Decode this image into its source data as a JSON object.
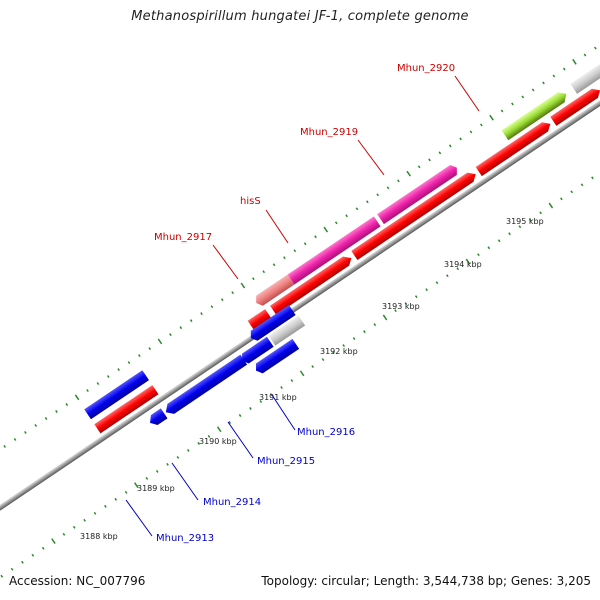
{
  "title": "Methanospirillum hungatei JF-1, complete genome",
  "footer": {
    "accession": "Accession: NC_007796",
    "summary": "Topology: circular; Length: 3,544,738 bp; Genes: 3,205"
  },
  "colors": {
    "forward_cds": "#ff0000",
    "reverse_cds": "#0000ee",
    "gene_pink": "#ee22aa",
    "gene_salmon": "#f08080",
    "gene_green": "#99dd33",
    "gene_gray": "#c8c8c8",
    "backbone": "#9a9a9a",
    "tick": "#2a8a2a",
    "label_forward": "#cc0000",
    "label_reverse": "#0000cc"
  },
  "scale_labels": [
    "3188 kbp",
    "3189 kbp",
    "3190 kbp",
    "3191 kbp",
    "3192 kbp",
    "3193 kbp",
    "3194 kbp",
    "3195 kbp"
  ],
  "gene_labels_forward": [
    "Mhun_2917",
    "hisS",
    "Mhun_2919",
    "Mhun_2920"
  ],
  "gene_labels_reverse": [
    "Mhun_2913",
    "Mhun_2914",
    "Mhun_2915",
    "Mhun_2916"
  ]
}
